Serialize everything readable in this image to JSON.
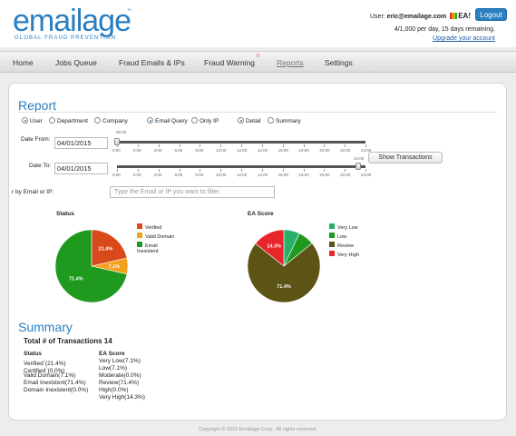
{
  "header": {
    "logo_word": "emailage",
    "logo_tm": "™",
    "logo_tagline": "GLOBAL FRAUD PREVENTION",
    "user_prefix": "User: ",
    "user_email": "eric@emailage.com",
    "ea_mark": "EA!",
    "logout_label": "Logout",
    "quota_text": "4/1,000 per day, 15 days remaining.",
    "upgrade_label": "Upgrade your account"
  },
  "nav": {
    "items": [
      {
        "label": "Home"
      },
      {
        "label": "Jobs Queue"
      },
      {
        "label": "Fraud Emails & IPs"
      },
      {
        "label": "Fraud Warning",
        "badge": "0"
      },
      {
        "label": "Reports"
      },
      {
        "label": "Settings"
      }
    ],
    "active": "Reports"
  },
  "report": {
    "title": "Report",
    "scope_options": [
      "User",
      "Department",
      "Company"
    ],
    "scope_selected": "User",
    "query_options": [
      "Email Query",
      "Only IP"
    ],
    "query_selected": "Email Query",
    "view_options": [
      "Detail",
      "Summary"
    ],
    "view_selected": "Detail",
    "date_from_label": "Date From:",
    "date_from_value": "04/01/2015",
    "date_from_time": "00:00",
    "date_to_label": "Date To:",
    "date_to_value": "04/01/2015",
    "date_to_time": "24:00",
    "time_ticks": [
      "0:00",
      "2:00",
      "4:00",
      "6:00",
      "8:00",
      "10:00",
      "12:00",
      "14:00",
      "16:00",
      "18:00",
      "20:00",
      "22:00",
      "24:00"
    ],
    "show_button_label": "Show Transactions",
    "filter_label": "r by Email or IP:",
    "filter_placeholder": "Type the Email or IP you want to filter"
  },
  "status_chart": {
    "title": "Status",
    "legend": [
      {
        "label": "Verified",
        "color": "#d94a1a"
      },
      {
        "label": "Valid Domain",
        "color": "#f2a01e"
      },
      {
        "label": "Email Inexistent",
        "color": "#1f9a1f"
      }
    ],
    "chart_data": {
      "type": "pie",
      "title": "Status",
      "labels": [
        "Verified",
        "Valid Domain",
        "Email Inexistent"
      ],
      "values": [
        21.4,
        7.1,
        71.4
      ],
      "data_labels": [
        "21.4%",
        "7.1%",
        "71.4%"
      ]
    }
  },
  "ea_chart": {
    "title": "EA Score",
    "legend": [
      {
        "label": "Very Low",
        "color": "#27b06a"
      },
      {
        "label": "Low",
        "color": "#1f9a1f"
      },
      {
        "label": "Review",
        "color": "#5b5414"
      },
      {
        "label": "Very High",
        "color": "#e8252b"
      }
    ],
    "chart_data": {
      "type": "pie",
      "title": "EA Score",
      "labels": [
        "Very Low",
        "Low",
        "Review",
        "Very High"
      ],
      "values": [
        7.1,
        7.1,
        71.4,
        14.3
      ],
      "data_labels": [
        "",
        "",
        "71.4%",
        "14.3%"
      ]
    }
  },
  "summary": {
    "title": "Summary",
    "total_label": "Total # of Transactions 14",
    "status_head": "Status",
    "status_lines": [
      {
        "text": "Verified",
        "mark": "?",
        "value": "(21.4%)"
      },
      {
        "text": "Certified",
        "mark": "?",
        "value": "(0.0%)"
      },
      {
        "text": "Valid Domain(7.1%)",
        "mark": "",
        "value": ""
      },
      {
        "text": "Email Inexistent(71.4%)",
        "mark": "",
        "value": ""
      },
      {
        "text": "Domain Inexistent(0.0%)",
        "mark": "",
        "value": ""
      }
    ],
    "ea_head": "EA Score",
    "ea_lines": [
      "Very Low(7.1%)",
      "Low(7.1%)",
      "Moderate(0.0%)",
      "Review(71.4%)",
      "High(0.0%)",
      "Very High(14.3%)"
    ]
  },
  "footer": {
    "copyright": "Copyright © 2015 Emailage Corp.. All rights reserved."
  }
}
